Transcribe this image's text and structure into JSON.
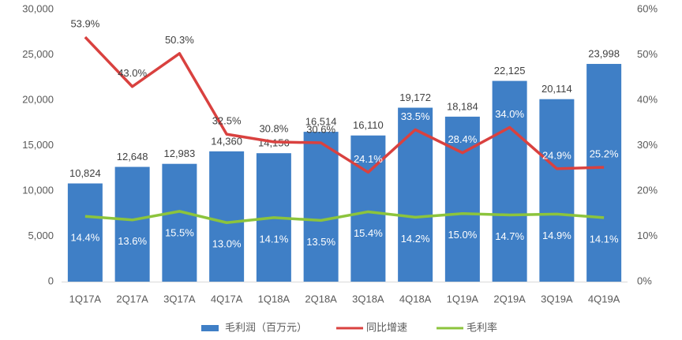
{
  "chart_data": {
    "type": "bar-line",
    "categories": [
      "1Q17A",
      "2Q17A",
      "3Q17A",
      "4Q17A",
      "1Q18A",
      "2Q18A",
      "3Q18A",
      "4Q18A",
      "1Q19A",
      "2Q19A",
      "3Q19A",
      "4Q19A"
    ],
    "series": [
      {
        "name": "毛利润（百万元）",
        "type": "bar",
        "color": "#3f7fc6",
        "values": [
          10824,
          12648,
          12983,
          14360,
          14156,
          16514,
          16110,
          19172,
          18184,
          22125,
          20114,
          23998
        ],
        "value_labels": [
          "10,824",
          "12,648",
          "12,983",
          "14,360",
          "14,156",
          "16,514",
          "16,110",
          "19,172",
          "18,184",
          "22,125",
          "20,114",
          "23,998"
        ]
      },
      {
        "name": "同比增速",
        "type": "line",
        "axis": "y2",
        "color": "#d9413f",
        "values": [
          53.9,
          43.0,
          50.3,
          32.5,
          30.8,
          30.6,
          24.1,
          33.5,
          28.4,
          34.0,
          24.9,
          25.2
        ],
        "value_labels": [
          "53.9%",
          "43.0%",
          "50.3%",
          "32.5%",
          "30.8%",
          "30.6%",
          "24.1%",
          "33.5%",
          "28.4%",
          "34.0%",
          "24.9%",
          "25.2%"
        ]
      },
      {
        "name": "毛利率",
        "type": "line",
        "axis": "y2",
        "color": "#8cc43c",
        "values": [
          14.4,
          13.6,
          15.5,
          13.0,
          14.1,
          13.5,
          15.4,
          14.2,
          15.0,
          14.7,
          14.9,
          14.1
        ],
        "value_labels": [
          "14.4%",
          "13.6%",
          "15.5%",
          "13.0%",
          "14.1%",
          "13.5%",
          "15.4%",
          "14.2%",
          "15.0%",
          "14.7%",
          "14.9%",
          "14.1%"
        ]
      }
    ],
    "ylim": [
      0,
      30000
    ],
    "yticks": [
      0,
      {
        "value": 5000,
        "label": "5,000"
      },
      {
        "value": 10000,
        "label": "10,000"
      },
      {
        "value": 15000,
        "label": "15,000"
      },
      {
        "value": 20000,
        "label": "20,000"
      },
      {
        "value": 25000,
        "label": "25,000"
      },
      {
        "value": 30000,
        "label": "30,000"
      }
    ],
    "y2lim": [
      0,
      60
    ],
    "y2ticks": [
      {
        "value": 0,
        "label": "0%"
      },
      {
        "value": 10,
        "label": "10%"
      },
      {
        "value": 20,
        "label": "20%"
      },
      {
        "value": 30,
        "label": "30%"
      },
      {
        "value": 40,
        "label": "40%"
      },
      {
        "value": 50,
        "label": "50%"
      },
      {
        "value": 60,
        "label": "60%"
      }
    ],
    "legend": "bottom"
  }
}
